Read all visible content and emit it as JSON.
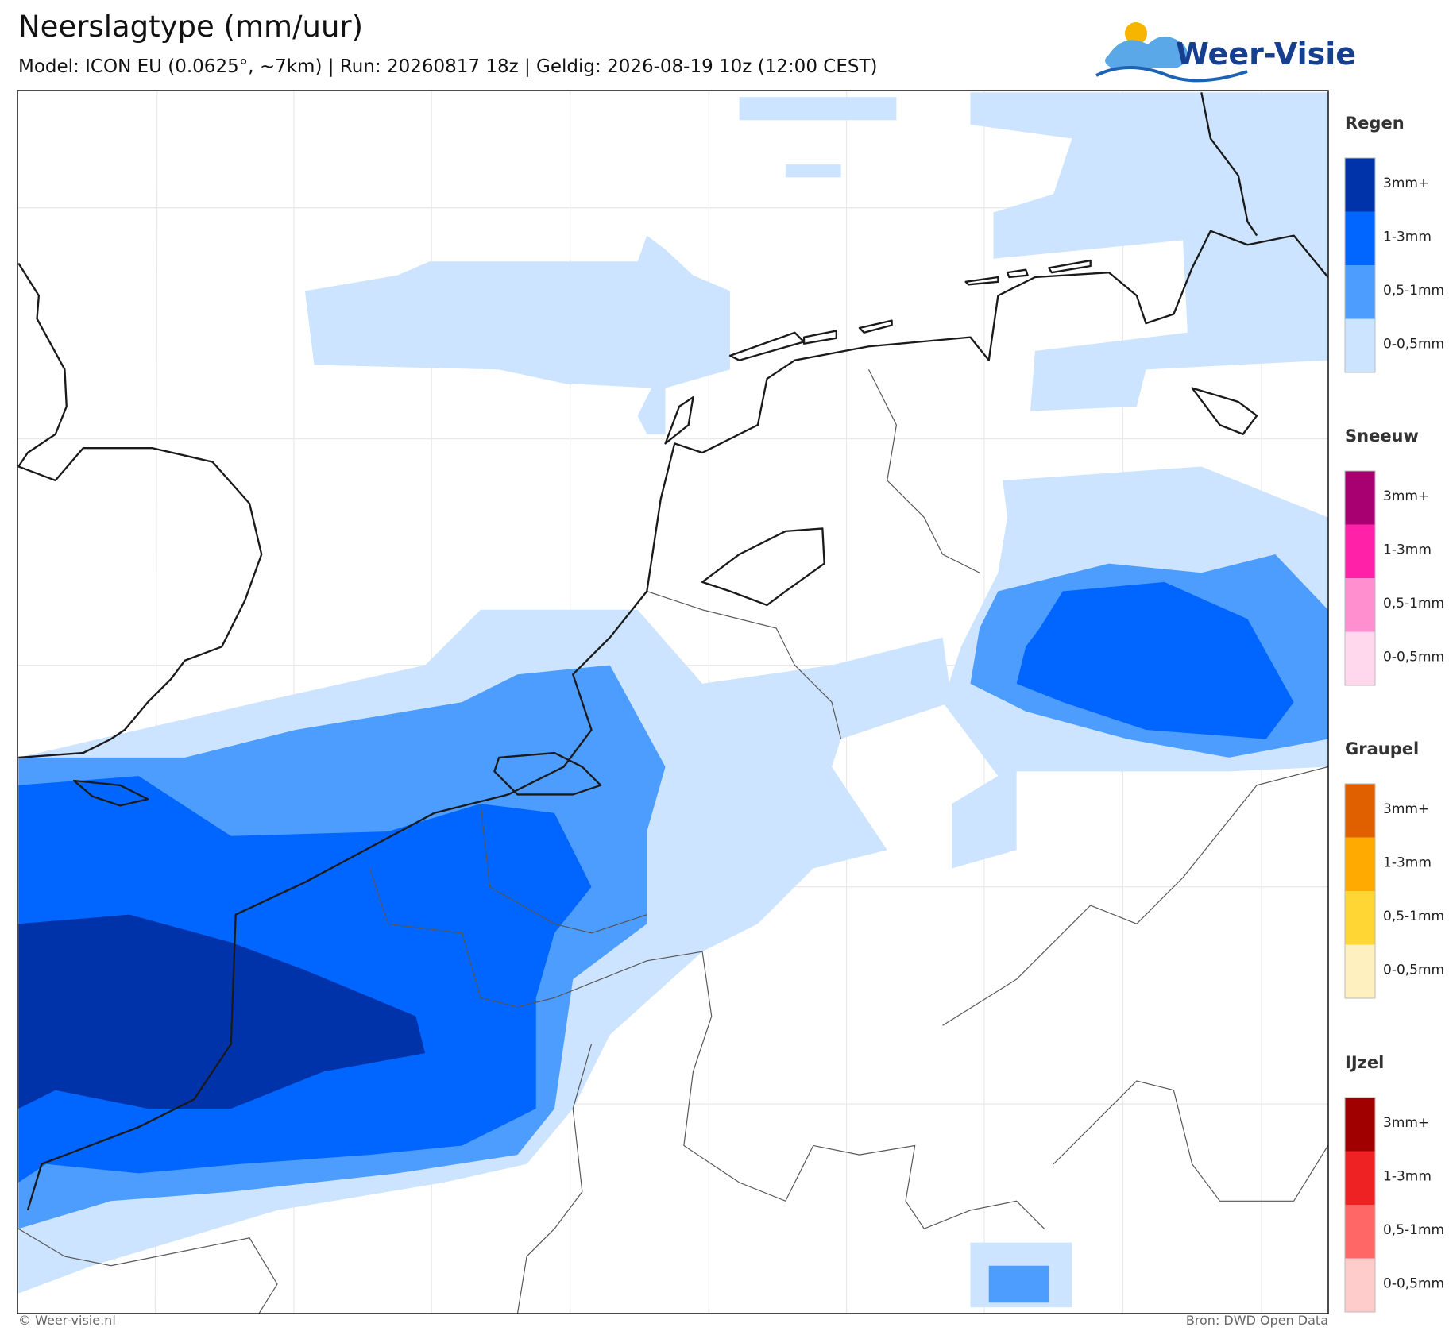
{
  "header": {
    "title": "Neerslagtype (mm/uur)",
    "subtitle": "Model: ICON EU (0.0625°, ~7km)  |  Run: 20260817 18z  |  Geldig: 2026-08-19 10z (12:00 CEST)",
    "logo": "Weer-Visie"
  },
  "legend": [
    {
      "title": "Regen",
      "items": [
        {
          "label": "3mm+",
          "color": "#0033aa"
        },
        {
          "label": "1-3mm",
          "color": "#0066ff"
        },
        {
          "label": "0,5-1mm",
          "color": "#4d9dff"
        },
        {
          "label": "0-0,5mm",
          "color": "#cce4ff"
        }
      ]
    },
    {
      "title": "Sneeuw",
      "items": [
        {
          "label": "3mm+",
          "color": "#a80070"
        },
        {
          "label": "1-3mm",
          "color": "#ff22a8"
        },
        {
          "label": "0,5-1mm",
          "color": "#ff8fcf"
        },
        {
          "label": "0-0,5mm",
          "color": "#ffd8ee"
        }
      ]
    },
    {
      "title": "Graupel",
      "items": [
        {
          "label": "3mm+",
          "color": "#e06000"
        },
        {
          "label": "1-3mm",
          "color": "#ffaa00"
        },
        {
          "label": "0,5-1mm",
          "color": "#ffd633"
        },
        {
          "label": "0-0,5mm",
          "color": "#fff0c0"
        }
      ]
    },
    {
      "title": "IJzel",
      "items": [
        {
          "label": "3mm+",
          "color": "#a00000"
        },
        {
          "label": "1-3mm",
          "color": "#ee2222"
        },
        {
          "label": "0,5-1mm",
          "color": "#ff6666"
        },
        {
          "label": "0-0,5mm",
          "color": "#ffcccc"
        }
      ]
    }
  ],
  "footer": {
    "left": "© Weer-visie.nl",
    "right": "Bron: DWD Open Data"
  }
}
